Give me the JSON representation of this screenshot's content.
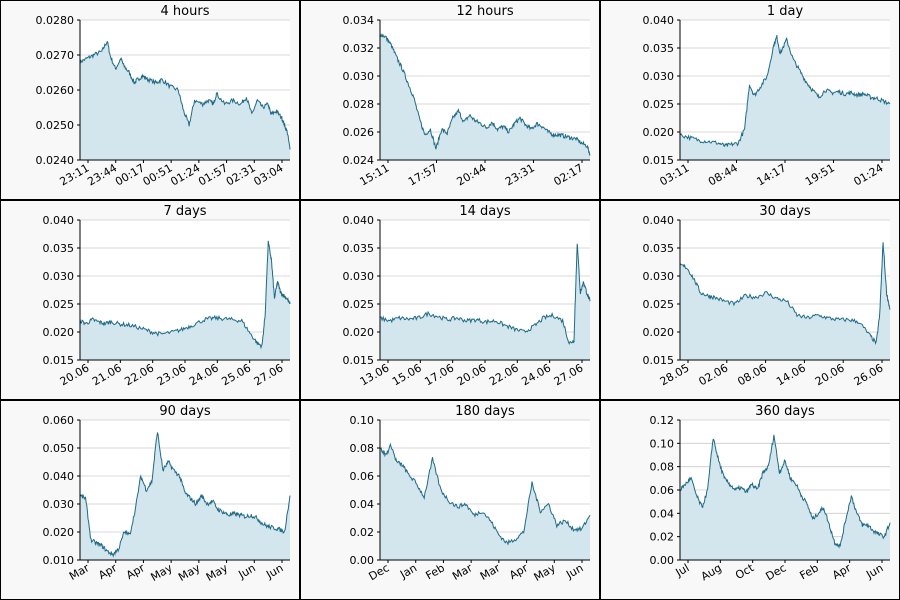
{
  "chart_data": [
    {
      "type": "area",
      "title": "4 hours",
      "ylim": [
        0.024,
        0.028
      ],
      "yticks": [
        "0.0240",
        "0.0250",
        "0.0260",
        "0.0270",
        "0.0280"
      ],
      "xticks": [
        "23:11",
        "23:44",
        "00:17",
        "00:51",
        "01:24",
        "01:57",
        "02:31",
        "03:04"
      ],
      "grid": true,
      "series": [
        {
          "x": [
            0,
            0.25,
            0.5,
            0.8,
            1,
            1.1,
            1.3,
            1.5,
            1.6,
            1.8,
            2,
            2.1,
            2.3,
            2.5,
            2.8,
            3,
            3.3,
            3.6,
            3.8,
            4,
            4.2,
            4.5,
            4.7,
            4.9,
            5,
            5.3,
            5.6,
            5.9,
            6.1,
            6.3,
            6.5,
            6.7,
            6.9,
            7,
            7.2,
            7.4,
            7.5,
            7.6,
            7.7
          ],
          "y": [
            0.0268,
            0.0269,
            0.027,
            0.0271,
            0.0274,
            0.027,
            0.0266,
            0.0269,
            0.0267,
            0.0265,
            0.0262,
            0.0263,
            0.0264,
            0.0263,
            0.0262,
            0.0263,
            0.0261,
            0.026,
            0.0254,
            0.025,
            0.0257,
            0.0256,
            0.0257,
            0.0256,
            0.0259,
            0.0256,
            0.0257,
            0.0256,
            0.0258,
            0.0253,
            0.0257,
            0.0255,
            0.0256,
            0.0253,
            0.0254,
            0.0252,
            0.025,
            0.0248,
            0.0243
          ]
        }
      ]
    },
    {
      "type": "area",
      "title": "12 hours",
      "ylim": [
        0.024,
        0.034
      ],
      "yticks": [
        "0.024",
        "0.026",
        "0.028",
        "0.030",
        "0.032",
        "0.034"
      ],
      "xticks": [
        "15:11",
        "17:57",
        "20:44",
        "23:31",
        "02:17"
      ],
      "grid": true,
      "series": [
        {
          "x": [
            0,
            0.2,
            0.4,
            0.6,
            0.8,
            1,
            1.2,
            1.4,
            1.6,
            1.8,
            2,
            2.2,
            2.4,
            2.6,
            2.8,
            3,
            3.2,
            3.4,
            3.6,
            3.8,
            4,
            4.2,
            4.4,
            4.6,
            4.8,
            5,
            5.2,
            5.4,
            5.6,
            5.8,
            6,
            6.2,
            6.4,
            6.6,
            6.8,
            7,
            7.2,
            7.4,
            7.5
          ],
          "y": [
            0.033,
            0.0328,
            0.0322,
            0.0313,
            0.0305,
            0.0295,
            0.0285,
            0.027,
            0.0258,
            0.0262,
            0.0248,
            0.0262,
            0.0259,
            0.027,
            0.0275,
            0.0267,
            0.0272,
            0.0268,
            0.0266,
            0.0263,
            0.0267,
            0.0262,
            0.0264,
            0.026,
            0.0266,
            0.027,
            0.0265,
            0.0262,
            0.0266,
            0.0264,
            0.026,
            0.0258,
            0.0258,
            0.0257,
            0.0256,
            0.0255,
            0.0252,
            0.025,
            0.0244
          ]
        }
      ]
    },
    {
      "type": "area",
      "title": "1 day",
      "ylim": [
        0.015,
        0.04
      ],
      "yticks": [
        "0.015",
        "0.020",
        "0.025",
        "0.030",
        "0.035",
        "0.040"
      ],
      "xticks": [
        "03:11",
        "08:44",
        "14:17",
        "19:51",
        "01:24"
      ],
      "grid": true,
      "series": [
        {
          "x": [
            0,
            0.3,
            0.6,
            0.9,
            1.2,
            1.4,
            1.6,
            1.8,
            2,
            2.15,
            2.3,
            2.5,
            2.7,
            2.9,
            3,
            3.1,
            3.3,
            3.5,
            3.7,
            3.9,
            4.1,
            4.3,
            4.5,
            4.7,
            4.9,
            5.1,
            5.3,
            5.5,
            5.7,
            5.9,
            6.1,
            6.3,
            6.5
          ],
          "y": [
            0.0195,
            0.019,
            0.0185,
            0.0183,
            0.018,
            0.0175,
            0.0178,
            0.018,
            0.0205,
            0.0285,
            0.0265,
            0.0282,
            0.03,
            0.0355,
            0.037,
            0.034,
            0.0365,
            0.033,
            0.031,
            0.029,
            0.0275,
            0.0262,
            0.0275,
            0.027,
            0.0272,
            0.0268,
            0.027,
            0.0266,
            0.0268,
            0.0262,
            0.026,
            0.0255,
            0.025
          ]
        }
      ]
    },
    {
      "type": "area",
      "title": "7 days",
      "ylim": [
        0.015,
        0.04
      ],
      "yticks": [
        "0.015",
        "0.020",
        "0.025",
        "0.030",
        "0.035",
        "0.040"
      ],
      "xticks": [
        "20.06",
        "21.06",
        "22.06",
        "23.06",
        "24.06",
        "25.06",
        "27.06"
      ],
      "grid": true,
      "series": [
        {
          "x": [
            0,
            0.2,
            0.4,
            0.6,
            0.8,
            1,
            1.3,
            1.6,
            2,
            2.3,
            2.6,
            3,
            3.3,
            3.6,
            4,
            4.3,
            4.6,
            4.9,
            5.2,
            5.5,
            5.7,
            5.85,
            5.95,
            6.05,
            6.15,
            6.25,
            6.35,
            6.45,
            6.55,
            6.65,
            6.75
          ],
          "y": [
            0.022,
            0.0215,
            0.0222,
            0.0218,
            0.0215,
            0.0218,
            0.0214,
            0.0212,
            0.0206,
            0.02,
            0.0196,
            0.02,
            0.0205,
            0.0212,
            0.0222,
            0.0225,
            0.0224,
            0.0222,
            0.022,
            0.0195,
            0.018,
            0.0175,
            0.023,
            0.036,
            0.033,
            0.026,
            0.029,
            0.027,
            0.0265,
            0.026,
            0.025
          ]
        }
      ]
    },
    {
      "type": "area",
      "title": "14 days",
      "ylim": [
        0.015,
        0.04
      ],
      "yticks": [
        "0.015",
        "0.020",
        "0.025",
        "0.030",
        "0.035",
        "0.040"
      ],
      "xticks": [
        "13.06",
        "15.06",
        "17.06",
        "20.06",
        "22.06",
        "24.06",
        "27.06"
      ],
      "grid": true,
      "series": [
        {
          "x": [
            0,
            0.3,
            0.6,
            0.9,
            1.2,
            1.5,
            1.8,
            2.1,
            2.4,
            2.7,
            3,
            3.3,
            3.6,
            3.9,
            4.2,
            4.5,
            4.8,
            5.1,
            5.4,
            5.7,
            5.9,
            6.05,
            6.15,
            6.25,
            6.35,
            6.45,
            6.55
          ],
          "y": [
            0.0225,
            0.022,
            0.0225,
            0.0223,
            0.0225,
            0.0233,
            0.0228,
            0.0222,
            0.0225,
            0.022,
            0.0222,
            0.0218,
            0.022,
            0.0212,
            0.0205,
            0.02,
            0.021,
            0.0225,
            0.023,
            0.022,
            0.018,
            0.0185,
            0.036,
            0.027,
            0.029,
            0.027,
            0.0255
          ]
        }
      ]
    },
    {
      "type": "area",
      "title": "30 days",
      "ylim": [
        0.015,
        0.04
      ],
      "yticks": [
        "0.015",
        "0.020",
        "0.025",
        "0.030",
        "0.035",
        "0.040"
      ],
      "xticks": [
        "28.05",
        "02.06",
        "08.06",
        "14.06",
        "20.06",
        "26.06"
      ],
      "grid": true,
      "series": [
        {
          "x": [
            0,
            0.2,
            0.4,
            0.6,
            0.8,
            1,
            1.3,
            1.6,
            1.9,
            2.2,
            2.5,
            2.8,
            3.1,
            3.4,
            3.7,
            4,
            4.3,
            4.6,
            4.9,
            5.2,
            5.5,
            5.7,
            5.8,
            5.9,
            6,
            6.1
          ],
          "y": [
            0.032,
            0.0315,
            0.0295,
            0.027,
            0.0265,
            0.0262,
            0.0255,
            0.025,
            0.0265,
            0.0262,
            0.027,
            0.026,
            0.0255,
            0.023,
            0.0225,
            0.023,
            0.0225,
            0.0222,
            0.0222,
            0.0218,
            0.0195,
            0.018,
            0.023,
            0.036,
            0.027,
            0.024
          ]
        }
      ]
    },
    {
      "type": "area",
      "title": "90 days",
      "ylim": [
        0.01,
        0.06
      ],
      "yticks": [
        "0.010",
        "0.020",
        "0.030",
        "0.040",
        "0.050",
        "0.060"
      ],
      "xticks": [
        "Mar",
        "Apr",
        "Apr",
        "May",
        "May",
        "May",
        "Jun",
        "Jun"
      ],
      "grid": true,
      "series": [
        {
          "x": [
            0,
            0.2,
            0.4,
            0.6,
            0.8,
            1,
            1.2,
            1.4,
            1.6,
            1.8,
            2,
            2.2,
            2.4,
            2.6,
            2.8,
            3,
            3.2,
            3.4,
            3.6,
            3.8,
            4,
            4.2,
            4.4,
            4.6,
            4.8,
            5,
            5.2,
            5.4,
            5.6,
            5.8,
            6,
            6.2,
            6.4,
            6.6,
            6.8,
            7,
            7.2,
            7.4,
            7.6
          ],
          "y": [
            0.033,
            0.032,
            0.017,
            0.016,
            0.015,
            0.013,
            0.012,
            0.014,
            0.02,
            0.019,
            0.028,
            0.04,
            0.035,
            0.038,
            0.056,
            0.042,
            0.045,
            0.042,
            0.04,
            0.034,
            0.032,
            0.03,
            0.033,
            0.03,
            0.031,
            0.028,
            0.027,
            0.026,
            0.0265,
            0.026,
            0.0255,
            0.026,
            0.025,
            0.023,
            0.022,
            0.0215,
            0.021,
            0.02,
            0.033
          ]
        }
      ]
    },
    {
      "type": "area",
      "title": "180 days",
      "ylim": [
        0.0,
        0.1
      ],
      "yticks": [
        "0.00",
        "0.02",
        "0.04",
        "0.06",
        "0.08",
        "0.10"
      ],
      "xticks": [
        "Dec",
        "Jan",
        "Feb",
        "Mar",
        "Mar",
        "Apr",
        "May",
        "Jun"
      ],
      "grid": true,
      "series": [
        {
          "x": [
            0,
            0.2,
            0.4,
            0.6,
            0.8,
            1,
            1.3,
            1.6,
            1.9,
            2.2,
            2.5,
            2.8,
            3.1,
            3.4,
            3.7,
            4,
            4.3,
            4.6,
            4.9,
            5.2,
            5.5,
            5.8,
            6.1,
            6.4,
            6.7,
            7,
            7.3,
            7.6
          ],
          "y": [
            0.08,
            0.075,
            0.082,
            0.07,
            0.068,
            0.062,
            0.055,
            0.045,
            0.072,
            0.05,
            0.042,
            0.038,
            0.04,
            0.032,
            0.035,
            0.028,
            0.018,
            0.012,
            0.015,
            0.02,
            0.055,
            0.035,
            0.04,
            0.025,
            0.028,
            0.022,
            0.022,
            0.032
          ]
        }
      ]
    },
    {
      "type": "area",
      "title": "360 days",
      "ylim": [
        0.0,
        0.12
      ],
      "yticks": [
        "0.00",
        "0.02",
        "0.04",
        "0.06",
        "0.08",
        "0.10",
        "0.12"
      ],
      "xticks": [
        "Jul",
        "Aug",
        "Oct",
        "Dec",
        "Feb",
        "Apr",
        "Jun"
      ],
      "grid": true,
      "series": [
        {
          "x": [
            0,
            0.2,
            0.4,
            0.6,
            0.8,
            1,
            1.2,
            1.4,
            1.6,
            1.8,
            2,
            2.2,
            2.4,
            2.6,
            2.8,
            3,
            3.2,
            3.4,
            3.6,
            3.8,
            4,
            4.2,
            4.4,
            4.6,
            4.8,
            5,
            5.2,
            5.4,
            5.6,
            5.8,
            6,
            6.2,
            6.4,
            6.6,
            6.8,
            7,
            7.2,
            7.4,
            7.6
          ],
          "y": [
            0.06,
            0.065,
            0.07,
            0.055,
            0.045,
            0.06,
            0.105,
            0.085,
            0.07,
            0.065,
            0.06,
            0.062,
            0.058,
            0.065,
            0.06,
            0.075,
            0.08,
            0.107,
            0.075,
            0.085,
            0.07,
            0.065,
            0.055,
            0.048,
            0.035,
            0.04,
            0.045,
            0.03,
            0.015,
            0.012,
            0.035,
            0.055,
            0.04,
            0.03,
            0.03,
            0.025,
            0.022,
            0.02,
            0.032
          ]
        }
      ]
    }
  ]
}
